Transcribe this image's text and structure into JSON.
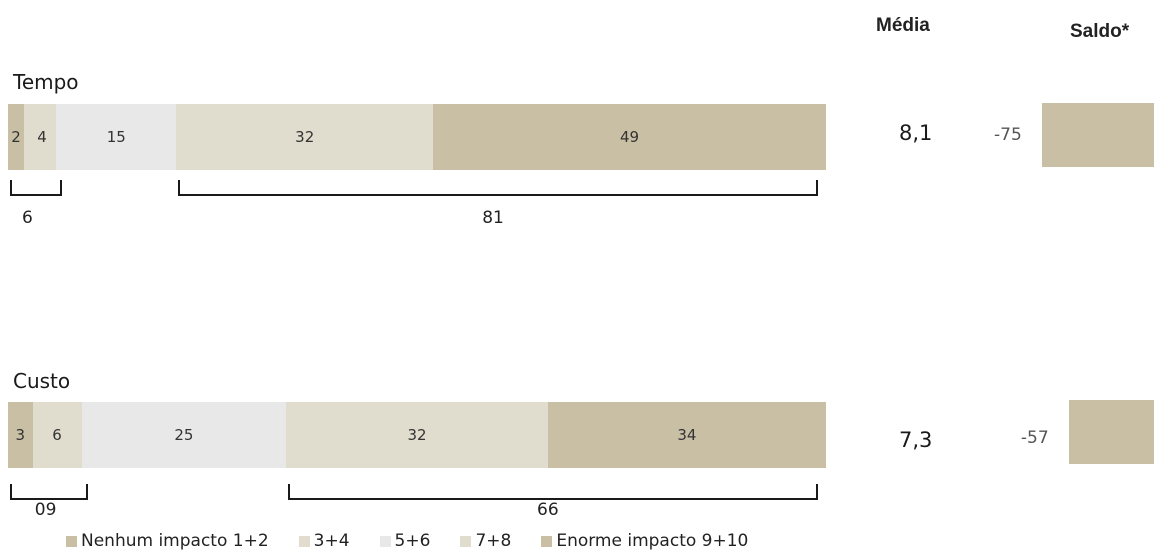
{
  "headers": {
    "media": "Média",
    "saldo": "Saldo*"
  },
  "chart_data": {
    "type": "bar",
    "orientation": "horizontal-stacked-100",
    "segments": [
      "Nenhum impacto 1+2",
      "3+4",
      "5+6",
      "7+8",
      "Enorme impacto 9+10"
    ],
    "colors": [
      "#c8bfa5",
      "#e0ddce",
      "#e8e8e8",
      "#e0ddce",
      "#c8bfa5"
    ],
    "rows": [
      {
        "name": "Tempo",
        "values": [
          2,
          4,
          15,
          32,
          49
        ],
        "labels": [
          "2",
          "4",
          "15",
          "32",
          "49"
        ],
        "bracket_low": "6",
        "bracket_high": "81",
        "media": "8,1",
        "saldo": -75,
        "saldo_label": "-75"
      },
      {
        "name": "Custo",
        "values": [
          3,
          6,
          25,
          32,
          34
        ],
        "labels": [
          "3",
          "6",
          "25",
          "32",
          "34"
        ],
        "bracket_low": "09",
        "bracket_high": "66",
        "media": "7,3",
        "saldo": -57,
        "saldo_label": "-57"
      }
    ]
  }
}
